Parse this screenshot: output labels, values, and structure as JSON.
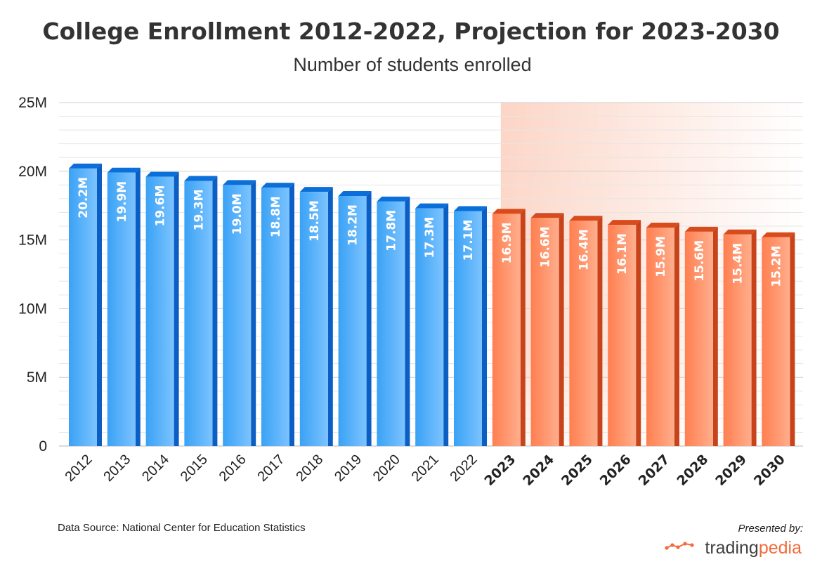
{
  "colors": {
    "actual_front": "#3aa2f5",
    "actual_front_light": "#7cc3ff",
    "actual_top": "#0b6fd9",
    "actual_side": "#0b5fc4",
    "projection_front": "#ff7f50",
    "projection_front_light": "#ffae8d",
    "projection_top": "#d84b1c",
    "projection_side": "#c8431a",
    "projection_band": "#fcd3c3",
    "grid": "#cfcfcf",
    "grid_minor": "#e6e6e6"
  },
  "chart_data": {
    "type": "bar",
    "title": "College Enrollment 2012-2022, Projection for 2023-2030",
    "subtitle": "Number of students enrolled",
    "categories": [
      "2012",
      "2013",
      "2014",
      "2015",
      "2016",
      "2017",
      "2018",
      "2019",
      "2020",
      "2021",
      "2022",
      "2023",
      "2024",
      "2025",
      "2026",
      "2027",
      "2028",
      "2029",
      "2030"
    ],
    "values": [
      20.2,
      19.9,
      19.6,
      19.3,
      19.0,
      18.8,
      18.5,
      18.2,
      17.8,
      17.3,
      17.1,
      16.9,
      16.6,
      16.4,
      16.1,
      15.9,
      15.6,
      15.4,
      15.2
    ],
    "data_labels": [
      "20.2M",
      "19.9M",
      "19.6M",
      "19.3M",
      "19.0M",
      "18.8M",
      "18.5M",
      "18.2M",
      "17.8M",
      "17.3M",
      "17.1M",
      "16.9M",
      "16.6M",
      "16.4M",
      "16.1M",
      "15.9M",
      "15.6M",
      "15.4M",
      "15.2M"
    ],
    "projection_start_index": 11,
    "ylim": [
      0,
      25
    ],
    "yticks": [
      0,
      5,
      10,
      15,
      20,
      25
    ],
    "ytick_labels": [
      "0",
      "5M",
      "10M",
      "15M",
      "20M",
      "25M"
    ],
    "grid": true
  },
  "footer": {
    "source": "Data Source: National Center for Education Statistics",
    "presented_by": "Presented by:",
    "brand_part1": "trading",
    "brand_part2": "pedia",
    "brand_icon": "trend-line-icon"
  }
}
